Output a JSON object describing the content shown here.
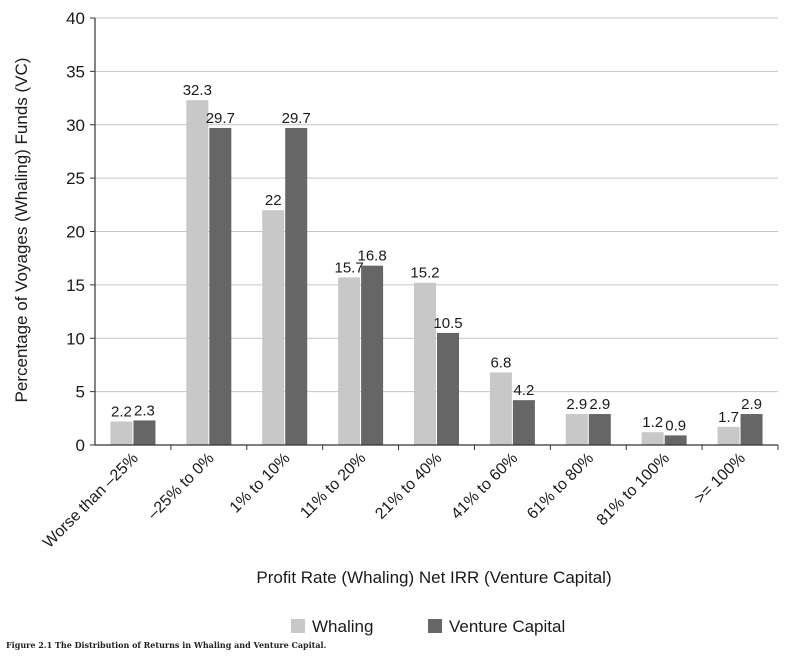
{
  "chart_data": {
    "type": "bar",
    "title": "",
    "xlabel": "Profit Rate (Whaling) Net IRR (Venture Capital)",
    "ylabel": "Percentage of Voyages (Whaling) Funds (VC)",
    "ylim": [
      0,
      40
    ],
    "yticks": [
      "0",
      "5",
      "10",
      "15",
      "20",
      "25",
      "30",
      "35",
      "40"
    ],
    "categories": [
      "Worse than –25%",
      "–25% to 0%",
      "1% to 10%",
      "11% to 20%",
      "21% to 40%",
      "41% to 60%",
      "61% to 80%",
      "81% to 100%",
      ">= 100%"
    ],
    "series": [
      {
        "name": "Whaling",
        "color": "#c8c8c8",
        "values": [
          2.2,
          32.3,
          22,
          15.7,
          15.2,
          6.8,
          2.9,
          1.2,
          1.7
        ],
        "labels": [
          "2.2",
          "32.3",
          "22",
          "15.7",
          "15.2",
          "6.8",
          "2.9",
          "1.2",
          "1.7"
        ]
      },
      {
        "name": "Venture Capital",
        "color": "#666666",
        "values": [
          2.3,
          29.7,
          29.7,
          16.8,
          10.5,
          4.2,
          2.9,
          0.9,
          2.9
        ],
        "labels": [
          "2.3",
          "29.7",
          "29.7",
          "16.8",
          "10.5",
          "4.2",
          "2.9",
          "0.9",
          "2.9"
        ]
      }
    ],
    "grid": true,
    "legend": "bottom"
  },
  "caption": "Figure 2.1 The Distribution of Returns in Whaling and Venture Capital."
}
